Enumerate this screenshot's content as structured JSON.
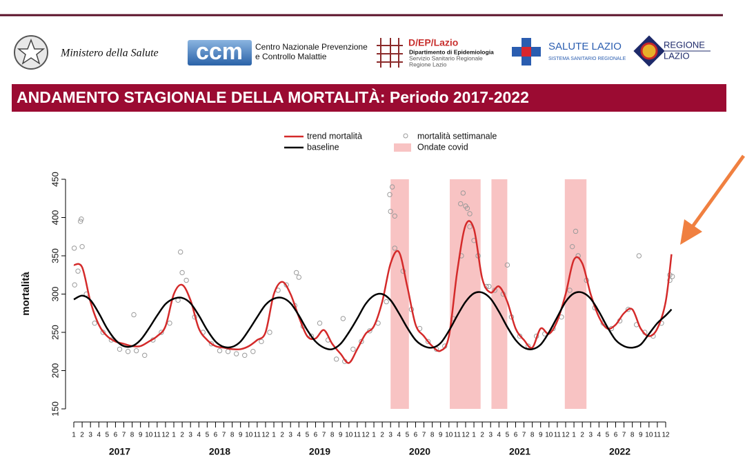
{
  "header": {
    "ministero": "Ministero della Salute",
    "ccm_logo": "ccm",
    "ccm_text": [
      "Centro Nazionale Prevenzione",
      "e Controllo Malattie"
    ],
    "dep_logo": "D/EP/Lazio",
    "dep_text": [
      "Dipartimento di Epidemiologia",
      "Servizio Sanitario Regionale",
      "Regione Lazio"
    ],
    "salute": "SALUTE LAZIO",
    "salute_sub": "SISTEMA SANITARIO REGIONALE",
    "regione": [
      "REGIONE",
      "LAZIO"
    ]
  },
  "chart_data": {
    "type": "line",
    "title": "ANDAMENTO STAGIONALE DELLA MORTALITÀ: Periodo 2017-2022",
    "ylabel": "mortalità",
    "ylim": [
      150,
      450
    ],
    "yticks": [
      150,
      200,
      250,
      300,
      350,
      400,
      450
    ],
    "xlim": [
      -1,
      71.85
    ],
    "xticks": [
      {
        "value": 0,
        "label": "1"
      },
      {
        "value": 1,
        "label": "2"
      },
      {
        "value": 2,
        "label": "3"
      },
      {
        "value": 3,
        "label": "4"
      },
      {
        "value": 4,
        "label": "5"
      },
      {
        "value": 5,
        "label": "6"
      },
      {
        "value": 6,
        "label": "7"
      },
      {
        "value": 7,
        "label": "8"
      },
      {
        "value": 8,
        "label": "9"
      },
      {
        "value": 9,
        "label": "10"
      },
      {
        "value": 10,
        "label": "11"
      },
      {
        "value": 11,
        "label": "12"
      },
      {
        "value": 12,
        "label": "1"
      },
      {
        "value": 13,
        "label": "2"
      },
      {
        "value": 14,
        "label": "3"
      },
      {
        "value": 15,
        "label": "4"
      },
      {
        "value": 16,
        "label": "5"
      },
      {
        "value": 17,
        "label": "6"
      },
      {
        "value": 18,
        "label": "7"
      },
      {
        "value": 19,
        "label": "8"
      },
      {
        "value": 20,
        "label": "9"
      },
      {
        "value": 21,
        "label": "10"
      },
      {
        "value": 22,
        "label": "11"
      },
      {
        "value": 23,
        "label": "12"
      },
      {
        "value": 24,
        "label": "1"
      },
      {
        "value": 25,
        "label": "2"
      },
      {
        "value": 26,
        "label": "3"
      },
      {
        "value": 27,
        "label": "4"
      },
      {
        "value": 28,
        "label": "5"
      },
      {
        "value": 29,
        "label": "6"
      },
      {
        "value": 30,
        "label": "7"
      },
      {
        "value": 31,
        "label": "8"
      },
      {
        "value": 32,
        "label": "9"
      },
      {
        "value": 33,
        "label": "10"
      },
      {
        "value": 34,
        "label": "11"
      },
      {
        "value": 35,
        "label": "12"
      },
      {
        "value": 36,
        "label": "1"
      },
      {
        "value": 37,
        "label": "2"
      },
      {
        "value": 38,
        "label": "3"
      },
      {
        "value": 39,
        "label": "4"
      },
      {
        "value": 40,
        "label": "5"
      },
      {
        "value": 41,
        "label": "6"
      },
      {
        "value": 42,
        "label": "7"
      },
      {
        "value": 43,
        "label": "8"
      },
      {
        "value": 44,
        "label": "9"
      },
      {
        "value": 45,
        "label": "10"
      },
      {
        "value": 46,
        "label": "11"
      },
      {
        "value": 47,
        "label": "12"
      },
      {
        "value": 48,
        "label": "1"
      },
      {
        "value": 49,
        "label": "2"
      },
      {
        "value": 50,
        "label": "3"
      },
      {
        "value": 51,
        "label": "4"
      },
      {
        "value": 52,
        "label": "5"
      },
      {
        "value": 53,
        "label": "6"
      },
      {
        "value": 54,
        "label": "7"
      },
      {
        "value": 55,
        "label": "8"
      },
      {
        "value": 56,
        "label": "9"
      },
      {
        "value": 57,
        "label": "10"
      },
      {
        "value": 58,
        "label": "11"
      },
      {
        "value": 59,
        "label": "12"
      },
      {
        "value": 60,
        "label": "1"
      },
      {
        "value": 61,
        "label": "2"
      },
      {
        "value": 62,
        "label": "3"
      },
      {
        "value": 63,
        "label": "4"
      },
      {
        "value": 64,
        "label": "5"
      },
      {
        "value": 65,
        "label": "6"
      },
      {
        "value": 66,
        "label": "7"
      },
      {
        "value": 67,
        "label": "8"
      },
      {
        "value": 68,
        "label": "9"
      },
      {
        "value": 69,
        "label": "10"
      },
      {
        "value": 70,
        "label": "11"
      },
      {
        "value": 71,
        "label": "12"
      }
    ],
    "year_ticks": [
      {
        "value": 5.5,
        "label": "2017"
      },
      {
        "value": 17.5,
        "label": "2018"
      },
      {
        "value": 29.5,
        "label": "2019"
      },
      {
        "value": 41.5,
        "label": "2020"
      },
      {
        "value": 53.5,
        "label": "2021"
      },
      {
        "value": 65.5,
        "label": "2022"
      }
    ],
    "x": [
      0,
      1,
      2,
      3,
      4,
      5,
      6,
      7,
      8,
      9,
      10,
      11,
      12,
      13,
      14,
      15,
      16,
      17,
      18,
      19,
      20,
      21,
      22,
      23,
      24,
      25,
      26,
      27,
      28,
      29,
      30,
      31,
      32,
      33,
      34,
      35,
      36,
      37,
      38,
      39,
      40,
      41,
      42,
      43,
      44,
      45,
      46,
      47,
      48,
      49,
      50,
      51,
      52,
      53,
      54,
      55,
      56,
      57,
      58,
      59,
      60,
      61,
      62,
      63,
      64,
      65,
      66,
      67,
      68,
      69,
      70,
      71,
      71.7
    ],
    "series": [
      {
        "name": "trend mortalità",
        "color": "#d42a2a",
        "values": [
          338,
          335,
          290,
          260,
          245,
          238,
          235,
          232,
          232,
          238,
          245,
          258,
          300,
          312,
          292,
          255,
          240,
          232,
          230,
          228,
          228,
          232,
          240,
          250,
          300,
          316,
          300,
          270,
          245,
          242,
          253,
          235,
          222,
          210,
          228,
          248,
          258,
          290,
          340,
          355,
          310,
          260,
          245,
          232,
          226,
          245,
          330,
          390,
          385,
          320,
          302,
          310,
          290,
          255,
          240,
          230,
          255,
          248,
          265,
          300,
          345,
          340,
          300,
          270,
          255,
          260,
          275,
          280,
          255,
          245,
          255,
          290,
          352
        ]
      },
      {
        "name": "baseline",
        "color": "#000000",
        "values": [
          293,
          298,
          292,
          275,
          255,
          240,
          232,
          232,
          240,
          255,
          272,
          287,
          294,
          295,
          288,
          272,
          253,
          238,
          231,
          231,
          238,
          253,
          270,
          286,
          294,
          295,
          288,
          272,
          253,
          238,
          230,
          228,
          235,
          250,
          268,
          287,
          298,
          300,
          292,
          275,
          256,
          240,
          232,
          230,
          236,
          252,
          272,
          290,
          301,
          302,
          294,
          277,
          257,
          240,
          230,
          228,
          234,
          250,
          270,
          290,
          301,
          302,
          294,
          277,
          257,
          240,
          232,
          230,
          234,
          248,
          262,
          272,
          280
        ]
      }
    ],
    "points": {
      "name": "mortalità settimanale",
      "color": "#9a9a9a",
      "x": [
        0.5,
        1.5,
        2.5,
        3.5,
        4.5,
        5.5,
        6.5,
        7.5,
        8.5,
        9.5,
        10.5,
        11.5,
        12.5,
        13.5,
        14.5,
        15.5,
        16.5,
        17.5,
        18.5,
        19.5,
        20.5,
        21.5,
        22.5,
        23.5,
        24.5,
        25.5,
        26.5,
        27.5,
        28.5,
        29.5,
        30.5,
        31.5,
        32.5,
        33.5,
        34.5,
        35.5,
        36.5,
        37.5,
        38.5,
        39.5,
        40.5,
        41.5,
        42.5,
        43.5,
        44.5,
        45.5,
        46.5,
        47.5,
        48.5,
        49.5,
        50.5,
        51.5,
        52.5,
        53.5,
        54.5,
        55.5,
        56.5,
        57.5,
        58.5,
        59.5,
        60.5,
        61.5,
        62.5,
        63.5,
        64.5,
        65.5,
        66.5,
        67.5,
        68.5,
        69.5,
        70.5,
        71.5,
        0.8,
        0.9,
        1.0,
        0.1,
        0.05,
        12.8,
        13.0,
        26.7,
        27.0,
        37.9,
        38.2,
        38.0,
        38.5,
        46.4,
        46.7,
        47.0,
        47.2,
        47.5,
        48.0,
        48.5,
        59.8,
        60.2,
        60.5,
        67.8,
        71.5,
        71.8,
        7.2,
        32.3,
        49.8,
        52.0
      ],
      "y": [
        330,
        300,
        262,
        250,
        240,
        228,
        225,
        226,
        220,
        240,
        250,
        262,
        292,
        318,
        270,
        250,
        235,
        226,
        225,
        222,
        220,
        225,
        238,
        250,
        305,
        312,
        285,
        258,
        245,
        262,
        240,
        215,
        212,
        228,
        238,
        252,
        262,
        290,
        360,
        330,
        280,
        255,
        238,
        228,
        232,
        268,
        350,
        405,
        350,
        310,
        305,
        300,
        270,
        245,
        232,
        245,
        248,
        255,
        270,
        305,
        350,
        318,
        282,
        262,
        255,
        265,
        280,
        260,
        250,
        245,
        262,
        318,
        395,
        398,
        362,
        312,
        360,
        355,
        328,
        328,
        322,
        430,
        440,
        408,
        402,
        418,
        432,
        415,
        412,
        388,
        370,
        350,
        362,
        382,
        350,
        350,
        325,
        323,
        273,
        268,
        310,
        338
      ]
    },
    "covid_waves": {
      "name": "Ondate covid",
      "color": "#f8c3c3",
      "ranges": [
        [
          38.0,
          40.2
        ],
        [
          45.1,
          48.8
        ],
        [
          50.1,
          52.0
        ],
        [
          58.9,
          61.5
        ]
      ]
    }
  }
}
